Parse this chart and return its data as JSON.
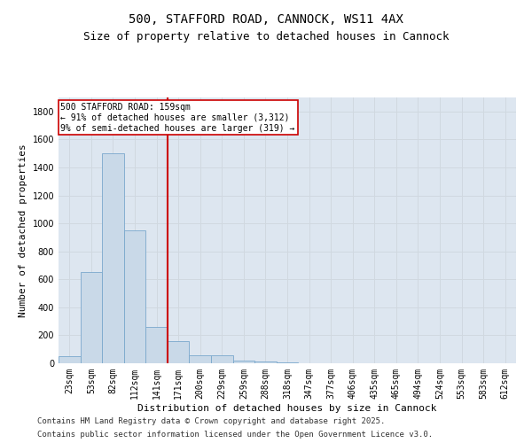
{
  "title": "500, STAFFORD ROAD, CANNOCK, WS11 4AX",
  "subtitle": "Size of property relative to detached houses in Cannock",
  "xlabel": "Distribution of detached houses by size in Cannock",
  "ylabel": "Number of detached properties",
  "categories": [
    "23sqm",
    "53sqm",
    "82sqm",
    "112sqm",
    "141sqm",
    "171sqm",
    "200sqm",
    "229sqm",
    "259sqm",
    "288sqm",
    "318sqm",
    "347sqm",
    "377sqm",
    "406sqm",
    "435sqm",
    "465sqm",
    "494sqm",
    "524sqm",
    "553sqm",
    "583sqm",
    "612sqm"
  ],
  "bar_values": [
    50,
    650,
    1500,
    950,
    260,
    160,
    55,
    55,
    20,
    15,
    5,
    2,
    1,
    0,
    0,
    0,
    0,
    0,
    0,
    0,
    0
  ],
  "bar_color": "#c9d9e8",
  "bar_edge_color": "#7aa8cc",
  "vline_color": "#cc0000",
  "annotation_text": "500 STAFFORD ROAD: 159sqm\n← 91% of detached houses are smaller (3,312)\n9% of semi-detached houses are larger (319) →",
  "annotation_box_color": "#cc0000",
  "annotation_text_color": "#000000",
  "annotation_bg": "#ffffff",
  "ylim": [
    0,
    1900
  ],
  "yticks": [
    0,
    200,
    400,
    600,
    800,
    1000,
    1200,
    1400,
    1600,
    1800
  ],
  "grid_color": "#d0d8e0",
  "bg_color": "#dde6f0",
  "footer_line1": "Contains HM Land Registry data © Crown copyright and database right 2025.",
  "footer_line2": "Contains public sector information licensed under the Open Government Licence v3.0.",
  "title_fontsize": 10,
  "subtitle_fontsize": 9,
  "axis_label_fontsize": 8,
  "tick_fontsize": 7,
  "footer_fontsize": 6.5
}
